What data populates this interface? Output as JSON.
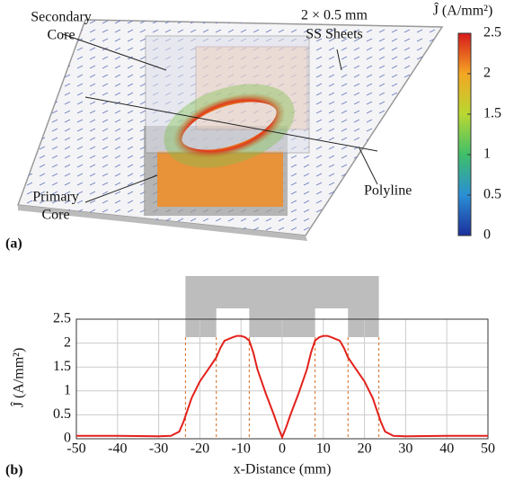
{
  "panel_a": {
    "label": "(a)",
    "annotations": {
      "secondary_core": [
        "Secondary",
        "Core"
      ],
      "sheets": [
        "2 × 0.5 mm",
        "SS Sheets"
      ],
      "primary_core": [
        "Primary",
        "Core"
      ],
      "polyline": "Polyline"
    },
    "colorbar": {
      "title": "Ĵ  (A/mm²)",
      "lim": [
        0,
        2.5
      ],
      "ticks": [
        0,
        0.5,
        1,
        1.5,
        2,
        2.5
      ]
    }
  },
  "chart_data": {
    "type": "line",
    "panel_label": "(b)",
    "x_label": "x-Distance (mm)",
    "y_label": "Ĵ  (A/mm²)",
    "x": [
      -50,
      -40,
      -30,
      -27,
      -25,
      -24,
      -23,
      -22,
      -20,
      -18,
      -16,
      -15,
      -14,
      -12,
      -11,
      -10,
      -9,
      -8,
      -7,
      -6,
      -4,
      -2,
      -1,
      0,
      1,
      2,
      4,
      6,
      7,
      8,
      9,
      10,
      11,
      12,
      14,
      15,
      16,
      18,
      20,
      22,
      23,
      24,
      25,
      27,
      30,
      40,
      50
    ],
    "values": [
      0.06,
      0.06,
      0.05,
      0.06,
      0.15,
      0.35,
      0.6,
      0.85,
      1.2,
      1.45,
      1.7,
      1.9,
      2.05,
      2.12,
      2.15,
      2.15,
      2.12,
      2.05,
      1.8,
      1.45,
      0.95,
      0.5,
      0.25,
      0.03,
      0.25,
      0.5,
      0.95,
      1.45,
      1.8,
      2.05,
      2.12,
      2.15,
      2.15,
      2.12,
      2.05,
      1.9,
      1.7,
      1.45,
      1.2,
      0.85,
      0.6,
      0.35,
      0.15,
      0.06,
      0.05,
      0.06,
      0.06
    ],
    "color": "#e3211c",
    "xlim": [
      -50,
      50
    ],
    "xticks": [
      -50,
      -40,
      -30,
      -20,
      -10,
      0,
      10,
      20,
      30,
      40,
      50
    ],
    "ylim": [
      0,
      2.5
    ],
    "yticks": [
      0,
      0.5,
      1,
      1.5,
      2,
      2.5
    ],
    "grid": true,
    "core_edges": [
      -23.5,
      -16,
      -8,
      8,
      16,
      23.5
    ],
    "core_color": "#bdbdbd",
    "edge_color": "#d2691e"
  }
}
